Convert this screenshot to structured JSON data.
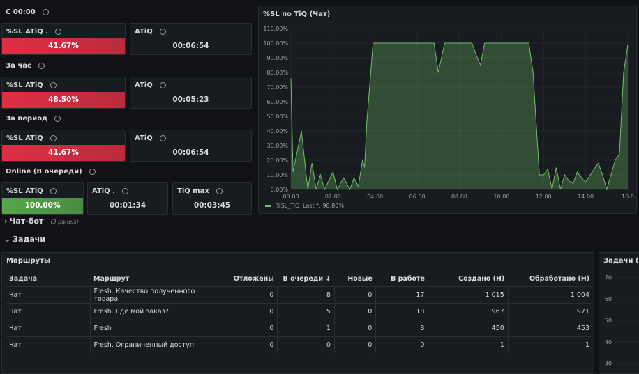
{
  "groups": [
    {
      "title": "С 00:00",
      "stats": [
        {
          "title": "%SL ATiQ .",
          "value": "41.67%",
          "color": "#e02f44"
        },
        {
          "title": "ATiQ",
          "value": "00:06:54"
        }
      ]
    },
    {
      "title": "За час",
      "stats": [
        {
          "title": "%SL ATiQ",
          "value": "48.50%",
          "color": "#e02f44"
        },
        {
          "title": "ATiQ",
          "value": "00:05:23"
        }
      ]
    },
    {
      "title": "За период",
      "stats": [
        {
          "title": "%SL ATiQ",
          "value": "41.67%",
          "color": "#e02f44"
        },
        {
          "title": "ATiQ",
          "value": "00:06:54"
        }
      ]
    },
    {
      "title": "Online (В очереди)",
      "stats": [
        {
          "title": "%SL ATiQ",
          "value": "100.00%",
          "color": "#56a64b"
        },
        {
          "title": "ATiQ .",
          "value": "00:01:34"
        },
        {
          "title": "TiQ max",
          "value": "00:03:45"
        }
      ]
    }
  ],
  "chart_data": {
    "type": "line",
    "title": "%SL по TiQ (Чат)",
    "x": [
      0,
      0.1,
      0.5,
      0.8,
      1.0,
      1.2,
      1.4,
      1.6,
      2.0,
      2.2,
      2.5,
      2.8,
      3.0,
      3.2,
      3.4,
      3.5,
      3.6,
      3.9,
      6.8,
      7.0,
      7.3,
      8.6,
      8.8,
      9.0,
      9.2,
      11.3,
      11.5,
      11.8,
      12.0,
      12.2,
      12.4,
      12.6,
      12.8,
      13.0,
      13.2,
      13.4,
      13.6,
      13.8,
      14.0,
      14.4,
      14.6,
      14.8,
      15.0,
      15.4,
      15.6,
      15.8,
      16.0
    ],
    "series": [
      {
        "name": "%SL_TiQ",
        "color": "#73bf69",
        "values": [
          76,
          12,
          40,
          0,
          18,
          0,
          10,
          0,
          12,
          0,
          8,
          0,
          8,
          2,
          20,
          15,
          45,
          100,
          100,
          80,
          100,
          100,
          92,
          85,
          100,
          100,
          80,
          10,
          10,
          14,
          0,
          15,
          0,
          10,
          6,
          4,
          12,
          8,
          5,
          14,
          18,
          10,
          0,
          20,
          24,
          80,
          98.8
        ]
      }
    ],
    "legend_extra": "Last *: 98.80%",
    "xlim": [
      0,
      16
    ],
    "xticks": [
      {
        "value": 0,
        "label": "00:00"
      },
      {
        "value": 2,
        "label": "02:00"
      },
      {
        "value": 4,
        "label": "04:00"
      },
      {
        "value": 6,
        "label": "06:00"
      },
      {
        "value": 8,
        "label": "08:00"
      },
      {
        "value": 10,
        "label": "10:00"
      },
      {
        "value": 12,
        "label": "12:00"
      },
      {
        "value": 14,
        "label": "14:00"
      },
      {
        "value": 16,
        "label": "16:0"
      }
    ],
    "ylim": [
      0,
      110
    ],
    "yticks": [
      {
        "value": 0,
        "label": "0.00%"
      },
      {
        "value": 10,
        "label": "10.00%"
      },
      {
        "value": 20,
        "label": "20.00%"
      },
      {
        "value": 30,
        "label": "30.00%"
      },
      {
        "value": 40,
        "label": "40.00%"
      },
      {
        "value": 50,
        "label": "50.00%"
      },
      {
        "value": 60,
        "label": "60.00%"
      },
      {
        "value": 70,
        "label": "70.00%"
      },
      {
        "value": 80,
        "label": "80.00%"
      },
      {
        "value": 90,
        "label": "90.00%"
      },
      {
        "value": 100,
        "label": "100.00%"
      },
      {
        "value": 110,
        "label": "110.00%"
      }
    ],
    "grid": true
  },
  "rows": [
    {
      "title": "Чат-бот",
      "note": "(3 panels)"
    },
    {
      "title": "Задачи"
    }
  ],
  "table": {
    "title": "Маршруты",
    "columns": [
      "Задача",
      "Маршрут",
      "Отложены",
      "В очереди ↓",
      "Новые",
      "В работе",
      "Создано (Н)",
      "Обработано (Н)"
    ],
    "rows": [
      [
        "Чат",
        "Fresh. Качество полученного товара",
        "0",
        "8",
        "0",
        "17",
        "1 015",
        "1 004"
      ],
      [
        "Чат",
        "Fresh. Где мой заказ?",
        "0",
        "5",
        "0",
        "13",
        "967",
        "971"
      ],
      [
        "Чат",
        "Fresh",
        "0",
        "1",
        "0",
        "8",
        "450",
        "453"
      ],
      [
        "Чат",
        "Fresh. Ограниченный доступ",
        "0",
        "0",
        "0",
        "0",
        "1",
        "1"
      ]
    ]
  },
  "side_panel": {
    "title": "Задачи (Ча",
    "ylim": [
      26,
      74
    ],
    "yticks": [
      30,
      40,
      50,
      60,
      70
    ]
  }
}
